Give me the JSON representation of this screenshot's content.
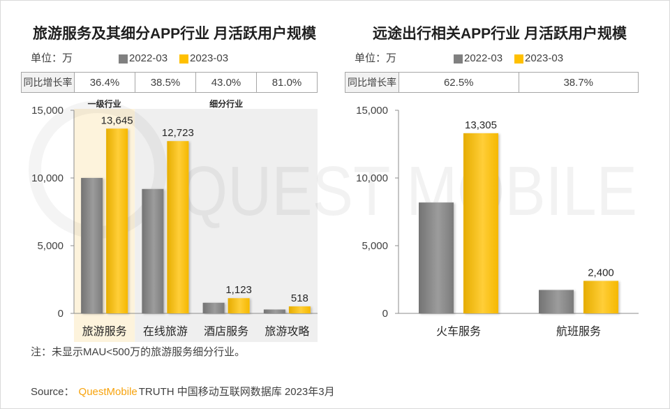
{
  "chart_data": [
    {
      "type": "bar",
      "title": "旅游服务及其细分APP行业 月活跃用户规模",
      "unit": "单位：万",
      "categories": [
        "旅游服务",
        "在线旅游",
        "酒店服务",
        "旅游攻略"
      ],
      "series": [
        {
          "name": "2022-03",
          "values": [
            10004,
            9186,
            785,
            286
          ],
          "color": "#808080"
        },
        {
          "name": "2023-03",
          "values": [
            13645,
            12723,
            1123,
            518
          ],
          "color": "#ffc000",
          "labels": [
            "13,645",
            "12,723",
            "1,123",
            "518"
          ]
        }
      ],
      "yoy": {
        "label": "同比增长率",
        "values": [
          "36.4%",
          "38.5%",
          "43.0%",
          "81.0%"
        ]
      },
      "groups": [
        {
          "label": "一级行业",
          "categories": [
            0
          ],
          "color": "#fdf3dc"
        },
        {
          "label": "细分行业",
          "categories": [
            1,
            2,
            3
          ],
          "color": "#efefef"
        }
      ],
      "ylim": [
        0,
        15000
      ],
      "yticks": [
        0,
        5000,
        10000,
        15000
      ],
      "ytick_labels": [
        "0",
        "5,000",
        "10,000",
        "15,000"
      ],
      "legend": "top",
      "grid": false
    },
    {
      "type": "bar",
      "title": "远途出行相关APP行业 月活跃用户规模",
      "unit": "单位：万",
      "categories": [
        "火车服务",
        "航班服务"
      ],
      "series": [
        {
          "name": "2022-03",
          "values": [
            8188,
            1730
          ],
          "color": "#808080"
        },
        {
          "name": "2023-03",
          "values": [
            13305,
            2400
          ],
          "color": "#ffc000",
          "labels": [
            "13,305",
            "2,400"
          ]
        }
      ],
      "yoy": {
        "label": "同比增长率",
        "values": [
          "62.5%",
          "38.7%"
        ]
      },
      "ylim": [
        0,
        15000
      ],
      "yticks": [
        0,
        5000,
        10000,
        15000
      ],
      "ytick_labels": [
        "0",
        "5,000",
        "10,000",
        "15,000"
      ],
      "legend": "top",
      "grid": false
    }
  ],
  "note": "注：未显示MAU<500万的旅游服务细分行业。",
  "source": {
    "prefix": "Source：",
    "brand": "QuestMobile",
    "rest": "TRUTH 中国移动互联网数据库 2023年3月"
  },
  "colors": {
    "brand": "#f7a30d"
  },
  "watermark": "QUEST MOBILE"
}
